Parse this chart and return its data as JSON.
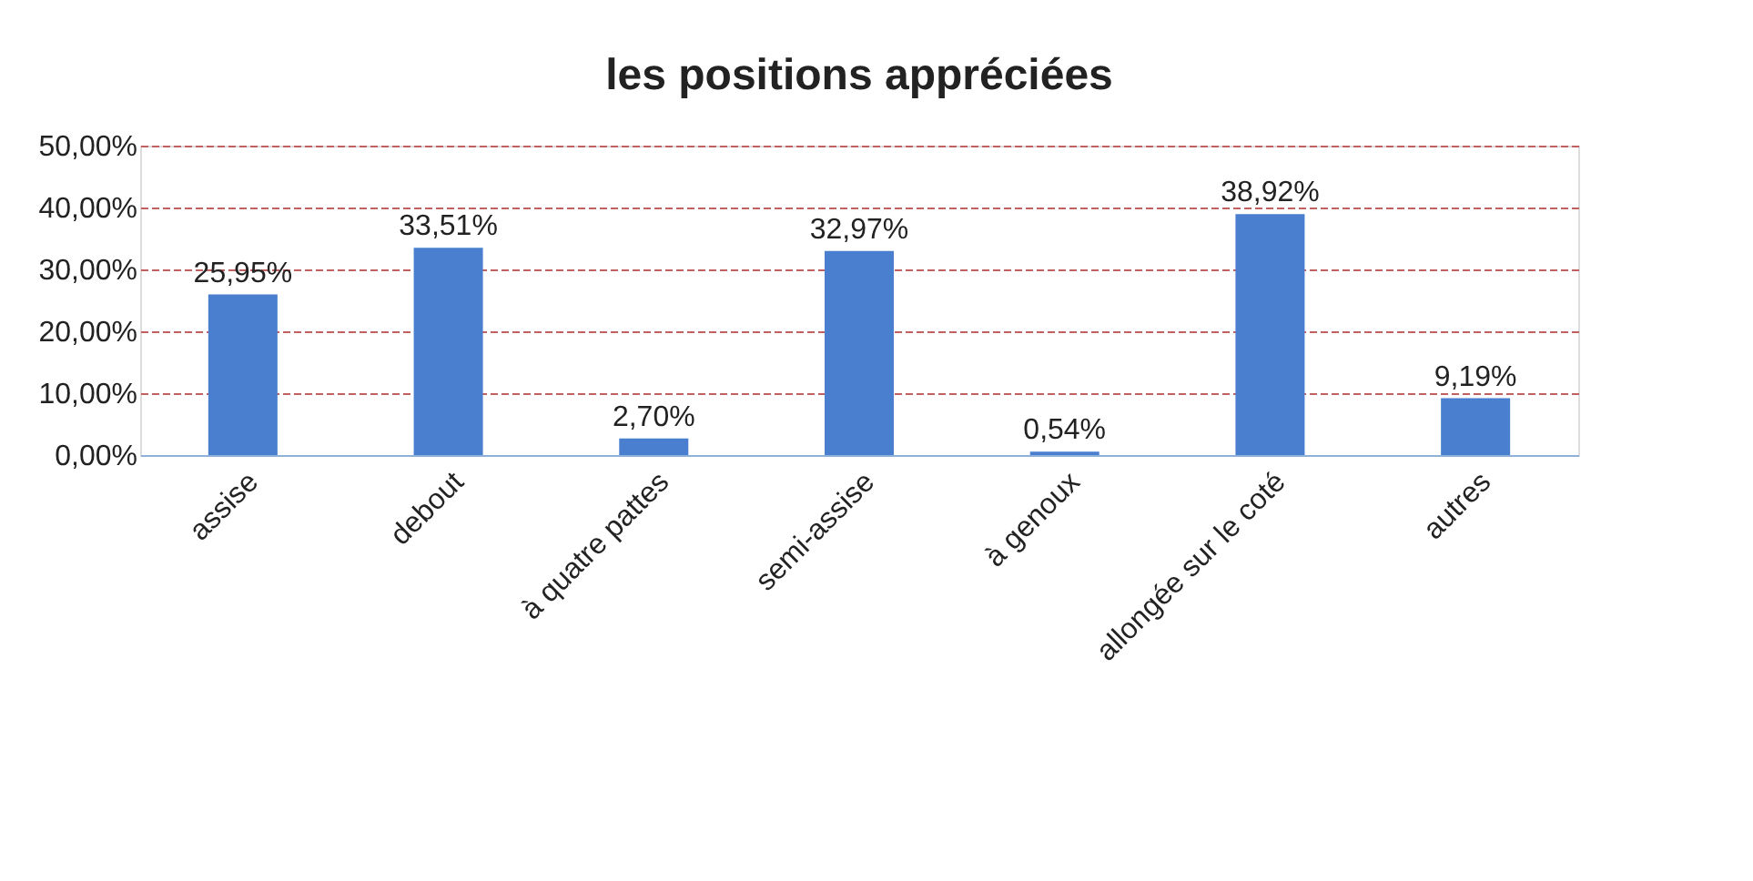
{
  "chart_data": {
    "type": "bar",
    "title": "les positions appréciées",
    "categories": [
      "assise",
      "debout",
      "à quatre pattes",
      "semi-assise",
      "à genoux",
      "allongée sur le coté",
      "autres"
    ],
    "values": [
      25.95,
      33.51,
      2.7,
      32.97,
      0.54,
      38.92,
      9.19
    ],
    "value_labels": [
      "25,95%",
      "33,51%",
      "2,70%",
      "32,97%",
      "0,54%",
      "38,92%",
      "9,19%"
    ],
    "color": "#4a7fd0",
    "ylim": [
      0,
      50
    ],
    "yticks": [
      {
        "value": 0,
        "label": "0,00%"
      },
      {
        "value": 10,
        "label": "10,00%"
      },
      {
        "value": 20,
        "label": "20,00%"
      },
      {
        "value": 30,
        "label": "30,00%"
      },
      {
        "value": 40,
        "label": "40,00%"
      },
      {
        "value": 50,
        "label": "50,00%"
      }
    ],
    "grid": "y"
  }
}
